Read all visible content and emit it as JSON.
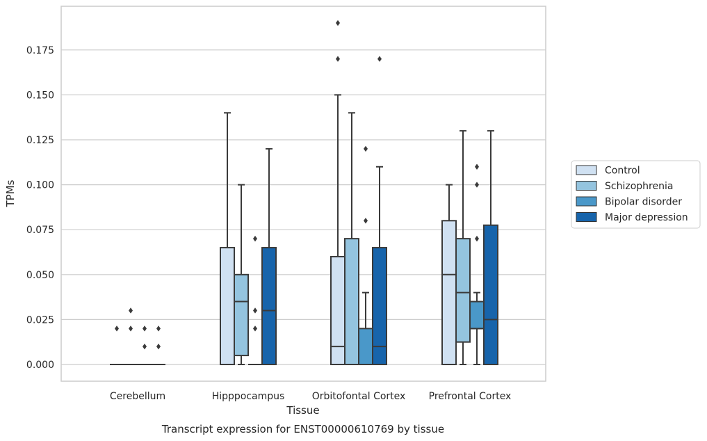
{
  "chart_data": {
    "type": "box",
    "categories": [
      "Cerebellum",
      "Hipppocampus",
      "Orbitofontal Cortex",
      "Prefrontal Cortex"
    ],
    "xlabel": "Tissue",
    "ylabel": "TPMs",
    "caption": "Transcript expression for ENST00000610769 by tissue",
    "ylim": [
      -0.009,
      0.2
    ],
    "yticks": [
      "0.000",
      "0.025",
      "0.050",
      "0.075",
      "0.100",
      "0.125",
      "0.150",
      "0.175"
    ],
    "grid": "horizontal",
    "legend_position": "right",
    "series": [
      {
        "name": "Control",
        "color": "#d0e1f2",
        "boxes": [
          {
            "q1": 0,
            "median": 0,
            "q3": 0,
            "whisker_low": 0,
            "whisker_high": 0,
            "outliers": [
              0.02
            ]
          },
          {
            "q1": 0,
            "median": 0,
            "q3": 0.065,
            "whisker_low": 0,
            "whisker_high": 0.14,
            "outliers": []
          },
          {
            "q1": 0,
            "median": 0.01,
            "q3": 0.06,
            "whisker_low": 0,
            "whisker_high": 0.15,
            "outliers": [
              0.17,
              0.19
            ]
          },
          {
            "q1": 0,
            "median": 0.05,
            "q3": 0.08,
            "whisker_low": 0,
            "whisker_high": 0.1,
            "outliers": []
          }
        ]
      },
      {
        "name": "Schizophrenia",
        "color": "#94c4df",
        "boxes": [
          {
            "q1": 0,
            "median": 0,
            "q3": 0,
            "whisker_low": 0,
            "whisker_high": 0,
            "outliers": [
              0.02,
              0.03
            ]
          },
          {
            "q1": 0.005,
            "median": 0.035,
            "q3": 0.05,
            "whisker_low": 0,
            "whisker_high": 0.1,
            "outliers": []
          },
          {
            "q1": 0,
            "median": 0,
            "q3": 0.07,
            "whisker_low": 0,
            "whisker_high": 0.14,
            "outliers": []
          },
          {
            "q1": 0.0125,
            "median": 0.04,
            "q3": 0.07,
            "whisker_low": 0,
            "whisker_high": 0.13,
            "outliers": []
          }
        ]
      },
      {
        "name": "Bipolar disorder",
        "color": "#4a98c9",
        "boxes": [
          {
            "q1": 0,
            "median": 0,
            "q3": 0,
            "whisker_low": 0,
            "whisker_high": 0,
            "outliers": [
              0.01,
              0.02
            ]
          },
          {
            "q1": 0,
            "median": 0,
            "q3": 0,
            "whisker_low": 0,
            "whisker_high": 0,
            "outliers": [
              0.02,
              0.03,
              0.07
            ]
          },
          {
            "q1": 0,
            "median": 0,
            "q3": 0.02,
            "whisker_low": 0,
            "whisker_high": 0.04,
            "outliers": [
              0.08,
              0.12
            ]
          },
          {
            "q1": 0.02,
            "median": 0.02,
            "q3": 0.035,
            "whisker_low": 0,
            "whisker_high": 0.04,
            "outliers": [
              0.07,
              0.1,
              0.11
            ]
          }
        ]
      },
      {
        "name": "Major depression",
        "color": "#1764ab",
        "boxes": [
          {
            "q1": 0,
            "median": 0,
            "q3": 0,
            "whisker_low": 0,
            "whisker_high": 0,
            "outliers": [
              0.01,
              0.02
            ]
          },
          {
            "q1": 0,
            "median": 0.03,
            "q3": 0.065,
            "whisker_low": 0,
            "whisker_high": 0.12,
            "outliers": []
          },
          {
            "q1": 0,
            "median": 0.01,
            "q3": 0.065,
            "whisker_low": 0,
            "whisker_high": 0.11,
            "outliers": [
              0.17
            ]
          },
          {
            "q1": 0,
            "median": 0.025,
            "q3": 0.0775,
            "whisker_low": 0,
            "whisker_high": 0.13,
            "outliers": []
          }
        ]
      }
    ]
  }
}
